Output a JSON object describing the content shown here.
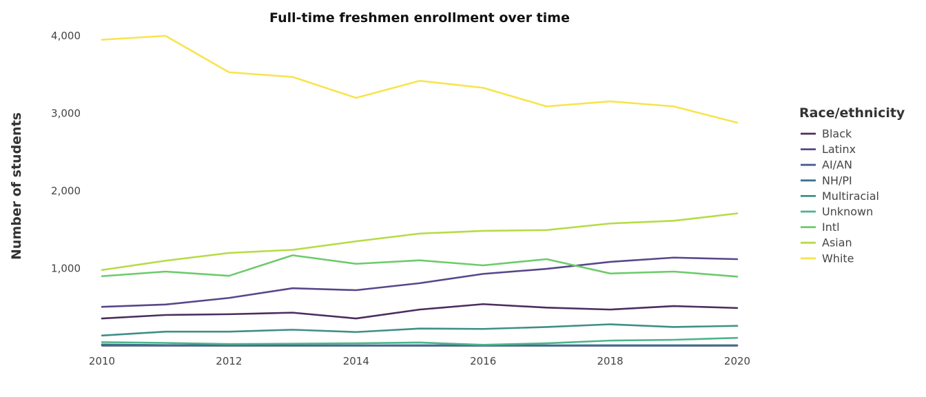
{
  "chart_data": {
    "type": "line",
    "title": "Full-time freshmen enrollment over time",
    "xlabel": "",
    "ylabel": "Number of students",
    "x": [
      2010,
      2011,
      2012,
      2013,
      2014,
      2015,
      2016,
      2017,
      2018,
      2019,
      2020
    ],
    "x_ticks": [
      2010,
      2012,
      2014,
      2016,
      2018,
      2020
    ],
    "x_tick_labels": [
      "2010",
      "2012",
      "2014",
      "2016",
      "2018",
      "2020"
    ],
    "xlim": [
      2010,
      2020
    ],
    "y_ticks": [
      1000,
      2000,
      3000,
      4000
    ],
    "y_tick_labels": [
      "1,000",
      "2,000",
      "3,000",
      "4,000"
    ],
    "ylim": [
      0,
      4000
    ],
    "grid": false,
    "legend_title": "Race/ethnicity",
    "legend_position": "right",
    "series": [
      {
        "name": "Black",
        "color": "#4b2d5e",
        "values": [
          355,
          400,
          410,
          430,
          355,
          470,
          540,
          495,
          470,
          515,
          490
        ]
      },
      {
        "name": "Latinx",
        "color": "#58478a",
        "values": [
          505,
          535,
          620,
          745,
          720,
          810,
          930,
          995,
          1085,
          1140,
          1120
        ]
      },
      {
        "name": "AI/AN",
        "color": "#4f5e91",
        "values": [
          8,
          6,
          5,
          5,
          6,
          5,
          5,
          5,
          5,
          5,
          6
        ]
      },
      {
        "name": "NH/PI",
        "color": "#3b728a",
        "values": [
          20,
          12,
          10,
          8,
          8,
          10,
          8,
          8,
          10,
          10,
          10
        ]
      },
      {
        "name": "Multiracial",
        "color": "#3e8f87",
        "values": [
          135,
          185,
          185,
          210,
          180,
          225,
          220,
          245,
          280,
          245,
          260
        ]
      },
      {
        "name": "Unknown",
        "color": "#4db38c",
        "values": [
          50,
          40,
          25,
          30,
          35,
          45,
          15,
          35,
          70,
          80,
          105
        ]
      },
      {
        "name": "Intl",
        "color": "#6ccb6a",
        "values": [
          900,
          960,
          905,
          1170,
          1060,
          1105,
          1040,
          1120,
          935,
          960,
          895
        ]
      },
      {
        "name": "Asian",
        "color": "#b5dc45",
        "values": [
          980,
          1100,
          1200,
          1240,
          1350,
          1450,
          1485,
          1495,
          1580,
          1615,
          1710
        ]
      },
      {
        "name": "White",
        "color": "#f7e44c",
        "values": [
          3950,
          4000,
          3530,
          3470,
          3200,
          3420,
          3330,
          3090,
          3155,
          3090,
          2880
        ]
      }
    ]
  }
}
